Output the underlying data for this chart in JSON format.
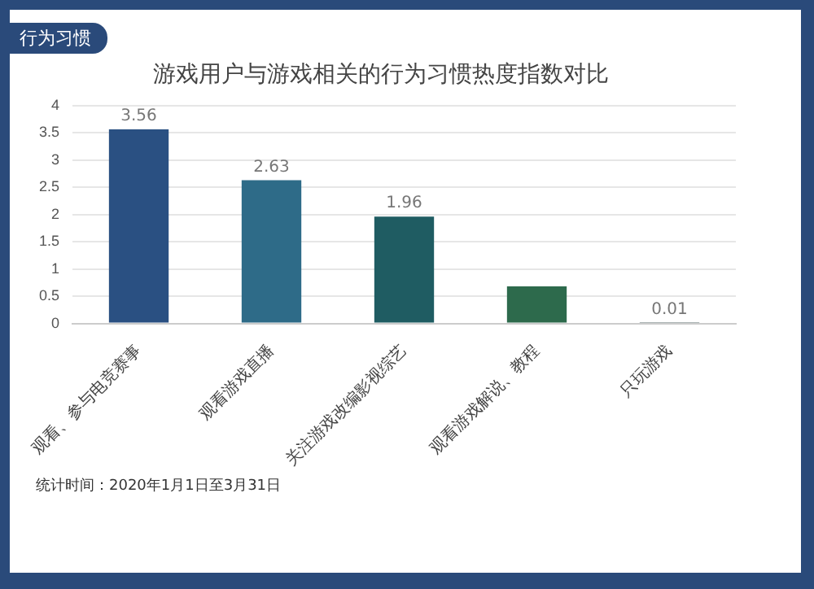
{
  "chart_data": {
    "type": "bar",
    "subtitle": "行为习惯",
    "title": "游戏用户与游戏相关的行为习惯热度指数对比",
    "categories": [
      "观看、参与电竞赛事",
      "观看游戏直播",
      "关注游戏改编影视综艺",
      "观看游戏解说、教程",
      "只玩游戏"
    ],
    "values": [
      3.56,
      2.63,
      1.96,
      0.68,
      0.01
    ],
    "colors": [
      "#2a5082",
      "#2e6b88",
      "#1f5c62",
      "#2d6a4c",
      "#5b6b6b"
    ],
    "value_labels": [
      "3.56",
      "2.63",
      "1.96",
      null,
      "0.01"
    ],
    "ylim": [
      0,
      4
    ],
    "yticks": [
      0,
      0.5,
      1,
      1.5,
      2,
      2.5,
      3,
      3.5,
      4
    ],
    "grid": "y",
    "legend": false,
    "annotations": [
      "统计时间：2020年1月1日至3月31日"
    ]
  }
}
